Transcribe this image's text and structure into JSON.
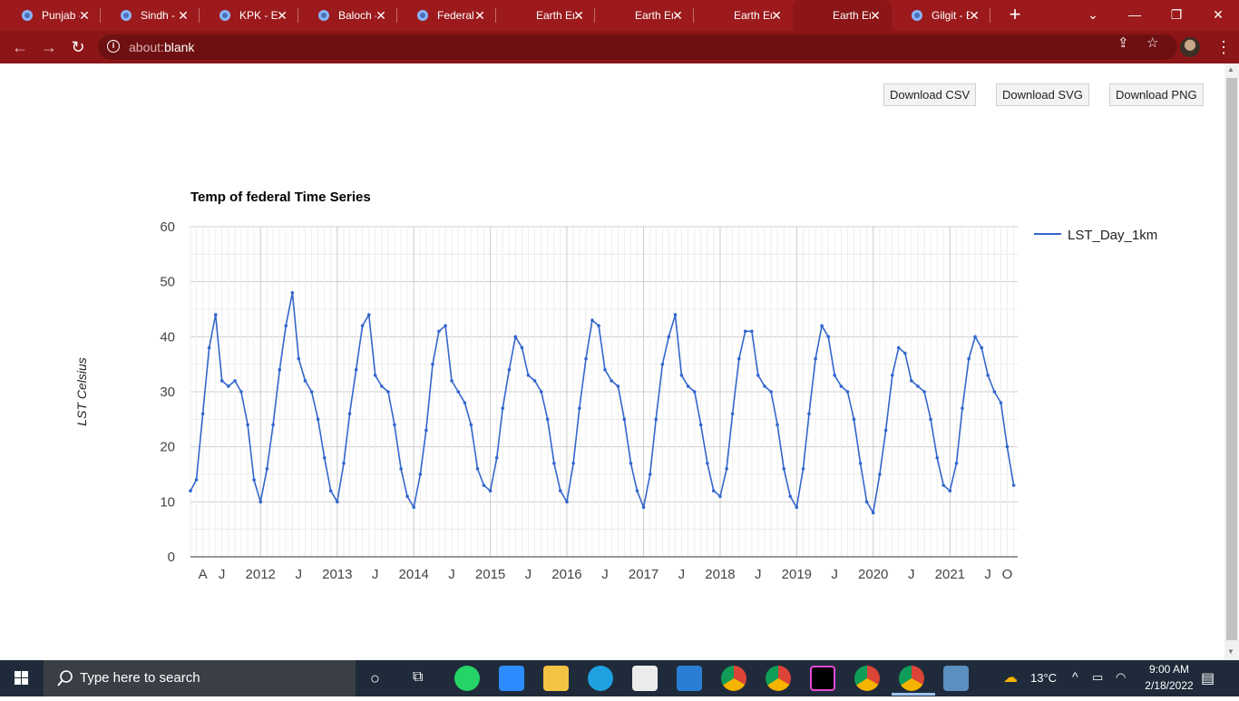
{
  "browser": {
    "tabs": [
      {
        "title": "Punjab - "
      },
      {
        "title": "Sindh - E"
      },
      {
        "title": "KPK - Ea"
      },
      {
        "title": "Baloch - "
      },
      {
        "title": "Federal - "
      },
      {
        "title": "Earth En"
      },
      {
        "title": "Earth En"
      },
      {
        "title": "Earth En"
      },
      {
        "title": "Earth En"
      },
      {
        "title": "Gilgit - E"
      }
    ],
    "active_tab": 8,
    "url_prefix": "about:",
    "url_rest": "blank",
    "accent": "#9c1a1c"
  },
  "toolbar": {
    "download_csv": "Download CSV",
    "download_svg": "Download SVG",
    "download_png": "Download PNG"
  },
  "chart_data": {
    "type": "line",
    "title": "Temp of federal Time Series",
    "ylabel": "LST Celsius",
    "xlabel": "",
    "ylim": [
      0,
      60
    ],
    "yticks": [
      0,
      10,
      20,
      30,
      40,
      50,
      60
    ],
    "xtick_labels": [
      "A",
      "J",
      "2012",
      "J",
      "2013",
      "J",
      "2014",
      "J",
      "2015",
      "J",
      "2016",
      "J",
      "2017",
      "J",
      "2018",
      "J",
      "2019",
      "J",
      "2020",
      "J",
      "2021",
      "J",
      "O"
    ],
    "x_range": [
      "2011-02",
      "2021-11"
    ],
    "grid": true,
    "legend_position": "right",
    "series": [
      {
        "name": "LST_Day_1km",
        "color": "#3366cc",
        "x": [
          "2011-02-01",
          "2011-03-01",
          "2011-04-01",
          "2011-05-01",
          "2011-06-01",
          "2011-07-01",
          "2011-08-01",
          "2011-09-01",
          "2011-10-01",
          "2011-11-01",
          "2011-12-01",
          "2012-01-01",
          "2012-02-01",
          "2012-03-01",
          "2012-04-01",
          "2012-05-01",
          "2012-06-01",
          "2012-07-01",
          "2012-08-01",
          "2012-09-01",
          "2012-10-01",
          "2012-11-01",
          "2012-12-01",
          "2013-01-01",
          "2013-02-01",
          "2013-03-01",
          "2013-04-01",
          "2013-05-01",
          "2013-06-01",
          "2013-07-01",
          "2013-08-01",
          "2013-09-01",
          "2013-10-01",
          "2013-11-01",
          "2013-12-01",
          "2014-01-01",
          "2014-02-01",
          "2014-03-01",
          "2014-04-01",
          "2014-05-01",
          "2014-06-01",
          "2014-07-01",
          "2014-08-01",
          "2014-09-01",
          "2014-10-01",
          "2014-11-01",
          "2014-12-01",
          "2015-01-01",
          "2015-02-01",
          "2015-03-01",
          "2015-04-01",
          "2015-05-01",
          "2015-06-01",
          "2015-07-01",
          "2015-08-01",
          "2015-09-01",
          "2015-10-01",
          "2015-11-01",
          "2015-12-01",
          "2016-01-01",
          "2016-02-01",
          "2016-03-01",
          "2016-04-01",
          "2016-05-01",
          "2016-06-01",
          "2016-07-01",
          "2016-08-01",
          "2016-09-01",
          "2016-10-01",
          "2016-11-01",
          "2016-12-01",
          "2017-01-01",
          "2017-02-01",
          "2017-03-01",
          "2017-04-01",
          "2017-05-01",
          "2017-06-01",
          "2017-07-01",
          "2017-08-01",
          "2017-09-01",
          "2017-10-01",
          "2017-11-01",
          "2017-12-01",
          "2018-01-01",
          "2018-02-01",
          "2018-03-01",
          "2018-04-01",
          "2018-05-01",
          "2018-06-01",
          "2018-07-01",
          "2018-08-01",
          "2018-09-01",
          "2018-10-01",
          "2018-11-01",
          "2018-12-01",
          "2019-01-01",
          "2019-02-01",
          "2019-03-01",
          "2019-04-01",
          "2019-05-01",
          "2019-06-01",
          "2019-07-01",
          "2019-08-01",
          "2019-09-01",
          "2019-10-01",
          "2019-11-01",
          "2019-12-01",
          "2020-01-01",
          "2020-02-01",
          "2020-03-01",
          "2020-04-01",
          "2020-05-01",
          "2020-06-01",
          "2020-07-01",
          "2020-08-01",
          "2020-09-01",
          "2020-10-01",
          "2020-11-01",
          "2020-12-01",
          "2021-01-01",
          "2021-02-01",
          "2021-03-01",
          "2021-04-01",
          "2021-05-01",
          "2021-06-01",
          "2021-07-01",
          "2021-08-01",
          "2021-09-01",
          "2021-10-01",
          "2021-11-01"
        ],
        "values": [
          12,
          14,
          26,
          38,
          44,
          32,
          31,
          32,
          30,
          24,
          14,
          10,
          16,
          24,
          34,
          42,
          48,
          36,
          32,
          30,
          25,
          18,
          12,
          10,
          17,
          26,
          34,
          42,
          44,
          33,
          31,
          30,
          24,
          16,
          11,
          9,
          15,
          23,
          35,
          41,
          42,
          32,
          30,
          28,
          24,
          16,
          13,
          12,
          18,
          27,
          34,
          40,
          38,
          33,
          32,
          30,
          25,
          17,
          12,
          10,
          17,
          27,
          36,
          43,
          42,
          34,
          32,
          31,
          25,
          17,
          12,
          9,
          15,
          25,
          35,
          40,
          44,
          33,
          31,
          30,
          24,
          17,
          12,
          11,
          16,
          26,
          36,
          41,
          41,
          33,
          31,
          30,
          24,
          16,
          11,
          9,
          16,
          26,
          36,
          42,
          40,
          33,
          31,
          30,
          25,
          17,
          10,
          8,
          15,
          23,
          33,
          38,
          37,
          32,
          31,
          30,
          25,
          18,
          13,
          12,
          17,
          27,
          36,
          40,
          38,
          33,
          30,
          28,
          20,
          13
        ]
      }
    ]
  },
  "taskbar": {
    "search_placeholder": "Type here to search",
    "temperature": "13°C",
    "time": "9:00 AM",
    "date": "2/18/2022"
  }
}
